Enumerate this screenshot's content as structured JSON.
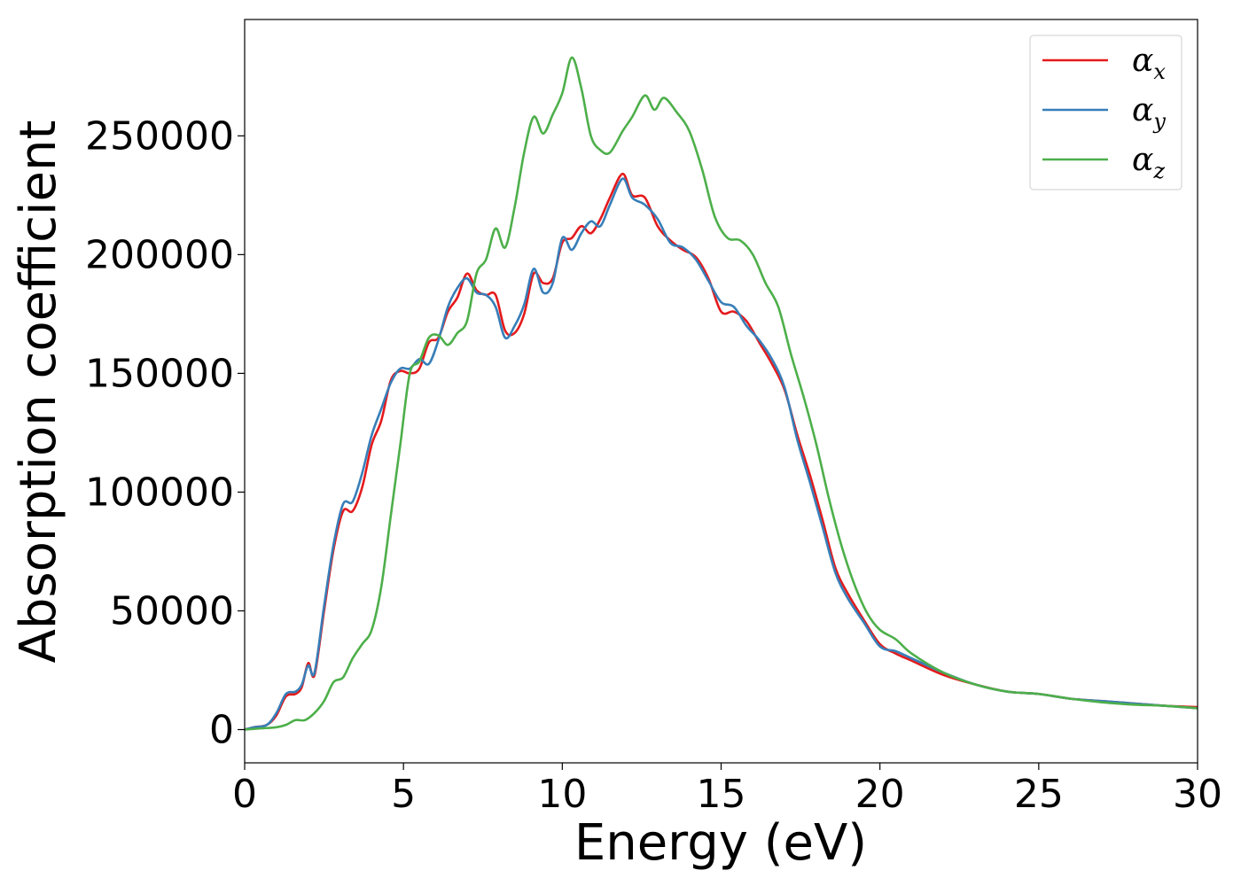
{
  "chart_data": {
    "type": "line",
    "title": "",
    "xlabel": "Energy (eV)",
    "ylabel": "Absorption coefficient",
    "xlim": [
      0,
      30
    ],
    "ylim": [
      -14000,
      299000
    ],
    "x_ticks": [
      0,
      5,
      10,
      15,
      20,
      25,
      30
    ],
    "y_ticks": [
      0,
      50000,
      100000,
      150000,
      200000,
      250000
    ],
    "grid": false,
    "legend_position": "top-right",
    "series": [
      {
        "name": "α",
        "subscript": "x",
        "color": "#e41a1c",
        "x": [
          0,
          0.3,
          0.7,
          1.0,
          1.3,
          1.6,
          1.8,
          2.0,
          2.2,
          2.5,
          2.8,
          3.1,
          3.4,
          3.7,
          4.0,
          4.3,
          4.6,
          4.9,
          5.2,
          5.5,
          5.8,
          6.1,
          6.4,
          6.7,
          7.0,
          7.3,
          7.6,
          7.9,
          8.2,
          8.5,
          8.8,
          9.1,
          9.4,
          9.7,
          10.0,
          10.3,
          10.6,
          10.9,
          11.2,
          11.5,
          11.9,
          12.2,
          12.6,
          13.0,
          13.4,
          13.8,
          14.2,
          14.6,
          15.0,
          15.4,
          15.8,
          16.2,
          16.6,
          17.0,
          17.4,
          17.8,
          18.2,
          18.6,
          19.0,
          19.5,
          20.0,
          20.5,
          21.0,
          22.0,
          23.0,
          24.0,
          25.0,
          26.0,
          27.0,
          28.0,
          29.0,
          30.0
        ],
        "values": [
          0,
          1000,
          2000,
          6000,
          14000,
          15000,
          18000,
          28000,
          23000,
          50000,
          76000,
          92000,
          92000,
          102000,
          120000,
          130000,
          147000,
          151000,
          150000,
          152000,
          163000,
          165000,
          176000,
          182000,
          192000,
          185000,
          183000,
          183000,
          168000,
          167000,
          175000,
          192000,
          188000,
          190000,
          205000,
          207000,
          212000,
          209000,
          215000,
          224000,
          234000,
          225000,
          224000,
          212000,
          206000,
          202000,
          199000,
          190000,
          176000,
          176000,
          172000,
          163000,
          154000,
          143000,
          124000,
          107000,
          88000,
          68000,
          57000,
          46000,
          36000,
          32000,
          29000,
          23000,
          19000,
          16000,
          15000,
          13000,
          12000,
          11000,
          10000,
          9500
        ]
      },
      {
        "name": "α",
        "subscript": "y",
        "color": "#377eb8",
        "x": [
          0,
          0.3,
          0.7,
          1.0,
          1.3,
          1.6,
          1.8,
          2.0,
          2.2,
          2.5,
          2.8,
          3.1,
          3.4,
          3.7,
          4.0,
          4.3,
          4.6,
          4.9,
          5.2,
          5.5,
          5.8,
          6.1,
          6.4,
          6.7,
          7.0,
          7.3,
          7.6,
          7.9,
          8.2,
          8.5,
          8.8,
          9.1,
          9.4,
          9.7,
          10.0,
          10.3,
          10.6,
          10.9,
          11.2,
          11.5,
          11.9,
          12.2,
          12.6,
          13.0,
          13.4,
          13.8,
          14.2,
          14.6,
          15.0,
          15.4,
          15.8,
          16.2,
          16.6,
          17.0,
          17.4,
          17.8,
          18.2,
          18.6,
          19.0,
          19.5,
          20.0,
          20.5,
          21.0,
          22.0,
          23.0,
          24.0,
          25.0,
          26.0,
          27.0,
          28.0,
          29.0,
          30.0
        ],
        "values": [
          0,
          1000,
          2000,
          7000,
          15000,
          16000,
          19000,
          27000,
          24000,
          52000,
          78000,
          95000,
          96000,
          108000,
          124000,
          135000,
          146000,
          152000,
          152000,
          156000,
          154000,
          164000,
          178000,
          186000,
          190000,
          184000,
          183000,
          178000,
          165000,
          170000,
          179000,
          194000,
          184000,
          188000,
          207000,
          202000,
          209000,
          214000,
          212000,
          221000,
          232000,
          224000,
          221000,
          215000,
          205000,
          203000,
          198000,
          189000,
          180000,
          178000,
          170000,
          164000,
          156000,
          144000,
          122000,
          104000,
          85000,
          66000,
          55000,
          45000,
          35000,
          33000,
          30000,
          24000,
          19000,
          16000,
          15000,
          13000,
          12000,
          11000,
          10000,
          9000
        ]
      },
      {
        "name": "α",
        "subscript": "z",
        "color": "#4daf4a",
        "x": [
          0,
          0.5,
          1.0,
          1.3,
          1.6,
          1.9,
          2.2,
          2.5,
          2.8,
          3.1,
          3.4,
          3.7,
          4.0,
          4.3,
          4.6,
          4.9,
          5.2,
          5.5,
          5.8,
          6.1,
          6.4,
          6.7,
          7.0,
          7.3,
          7.6,
          7.9,
          8.2,
          8.5,
          8.8,
          9.1,
          9.4,
          9.7,
          10.0,
          10.3,
          10.6,
          10.9,
          11.2,
          11.5,
          11.9,
          12.2,
          12.6,
          12.9,
          13.2,
          13.6,
          14.0,
          14.4,
          14.8,
          15.2,
          15.6,
          16.0,
          16.4,
          16.8,
          17.2,
          17.6,
          18.0,
          18.4,
          18.8,
          19.2,
          19.6,
          20.0,
          20.5,
          21.0,
          22.0,
          23.0,
          24.0,
          25.0,
          26.0,
          27.0,
          28.0,
          29.0,
          30.0
        ],
        "values": [
          0,
          500,
          1000,
          2000,
          4000,
          4000,
          7000,
          12000,
          20000,
          22000,
          30000,
          36000,
          42000,
          60000,
          90000,
          120000,
          150000,
          155000,
          165000,
          166000,
          162000,
          167000,
          172000,
          192000,
          198000,
          211000,
          203000,
          220000,
          243000,
          258000,
          251000,
          259000,
          268000,
          283000,
          270000,
          250000,
          244000,
          243000,
          252000,
          258000,
          267000,
          261000,
          266000,
          260000,
          252000,
          236000,
          216000,
          207000,
          206000,
          200000,
          188000,
          178000,
          158000,
          140000,
          120000,
          97000,
          77000,
          61000,
          49000,
          42000,
          38000,
          32000,
          24000,
          19000,
          16000,
          15000,
          13000,
          11500,
          10500,
          10000,
          9000
        ]
      }
    ]
  }
}
